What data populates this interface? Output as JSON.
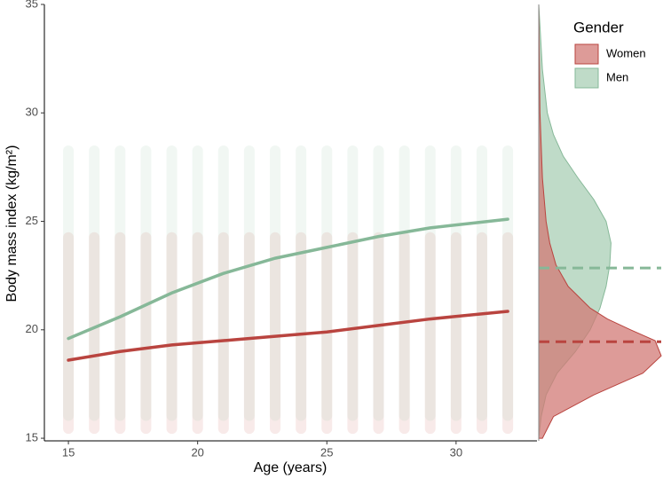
{
  "chart_data": {
    "type": "scatter",
    "xlabel": "Age (years)",
    "ylabel": "Body mass index (kg/m²)",
    "xlim": [
      14.07,
      33.13
    ],
    "ylim": [
      14.88,
      35
    ],
    "xticks": [
      15,
      20,
      25,
      30
    ],
    "yticks": [
      15,
      20,
      25,
      30,
      35
    ],
    "legend_title": "Gender",
    "legend": "right",
    "series": [
      {
        "name": "Women",
        "color": "#b9443f",
        "fill": "#d27a76",
        "x": [
          15,
          17,
          19,
          21,
          23,
          25,
          27,
          29,
          32
        ],
        "values": [
          18.6,
          19.0,
          19.3,
          19.5,
          19.7,
          19.9,
          20.2,
          20.5,
          20.85
        ],
        "point_x": [
          15,
          16,
          17,
          18,
          19,
          20,
          21,
          22,
          23,
          24,
          25,
          26,
          27,
          28,
          29,
          30,
          31,
          32
        ],
        "point_range": [
          15.2,
          24.5
        ],
        "mean": 19.45,
        "density_bmi": [
          15,
          16,
          17,
          18,
          18.8,
          19.5,
          20,
          20.5,
          21,
          22,
          23,
          24,
          25,
          27,
          30,
          35
        ],
        "density": [
          0.03,
          0.12,
          0.45,
          0.85,
          1.0,
          0.95,
          0.75,
          0.56,
          0.42,
          0.24,
          0.14,
          0.09,
          0.06,
          0.03,
          0.01,
          0
        ]
      },
      {
        "name": "Men",
        "color": "#86b898",
        "fill": "#a9cfb5",
        "x": [
          15,
          17,
          19,
          21,
          23,
          25,
          27,
          29,
          32
        ],
        "values": [
          19.6,
          20.6,
          21.7,
          22.6,
          23.3,
          23.8,
          24.3,
          24.7,
          25.1
        ],
        "point_x": [
          15,
          16,
          17,
          18,
          19,
          20,
          21,
          22,
          23,
          24,
          25,
          26,
          27,
          28,
          29,
          30,
          31,
          32
        ],
        "point_range": [
          15.8,
          28.5
        ],
        "mean": 22.85,
        "density_bmi": [
          15,
          16,
          17,
          18,
          19,
          20,
          21,
          22,
          23,
          24,
          25,
          26,
          27,
          28,
          29,
          30,
          32,
          35
        ],
        "density": [
          0,
          0.02,
          0.06,
          0.15,
          0.3,
          0.42,
          0.5,
          0.55,
          0.58,
          0.59,
          0.55,
          0.45,
          0.32,
          0.2,
          0.12,
          0.07,
          0.03,
          0
        ]
      }
    ]
  }
}
